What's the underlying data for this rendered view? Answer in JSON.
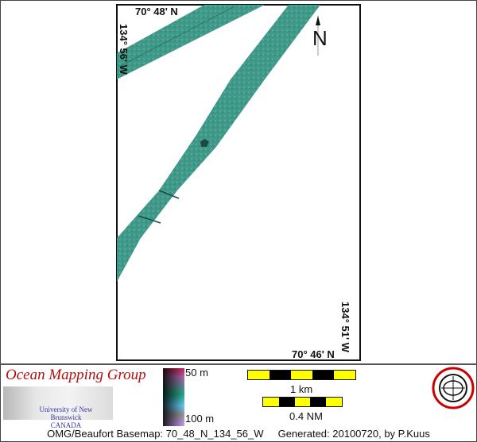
{
  "map": {
    "labels": {
      "top_lat": "70° 48' N",
      "left_lon": "134° 56' W",
      "right_lon": "134° 51' W",
      "bottom_lat": "70° 46' N",
      "north": "N"
    },
    "swath_color": "#3f9a8a"
  },
  "legend": {
    "brand": "Ocean Mapping Group",
    "university": "University of New Brunswick",
    "country": "CANADA",
    "depth_min": "50 m",
    "depth_max": "100 m",
    "scale_km": "1 km",
    "scale_nm": "0.4 NM",
    "seal_text": "GEODESY AND GEOMATICS ENGINEERING UNB"
  },
  "footer": {
    "title": "OMG/Beaufort Basemap: 70_48_N_134_56_W",
    "generated": "Generated: 20100720, by P.Kuus"
  }
}
